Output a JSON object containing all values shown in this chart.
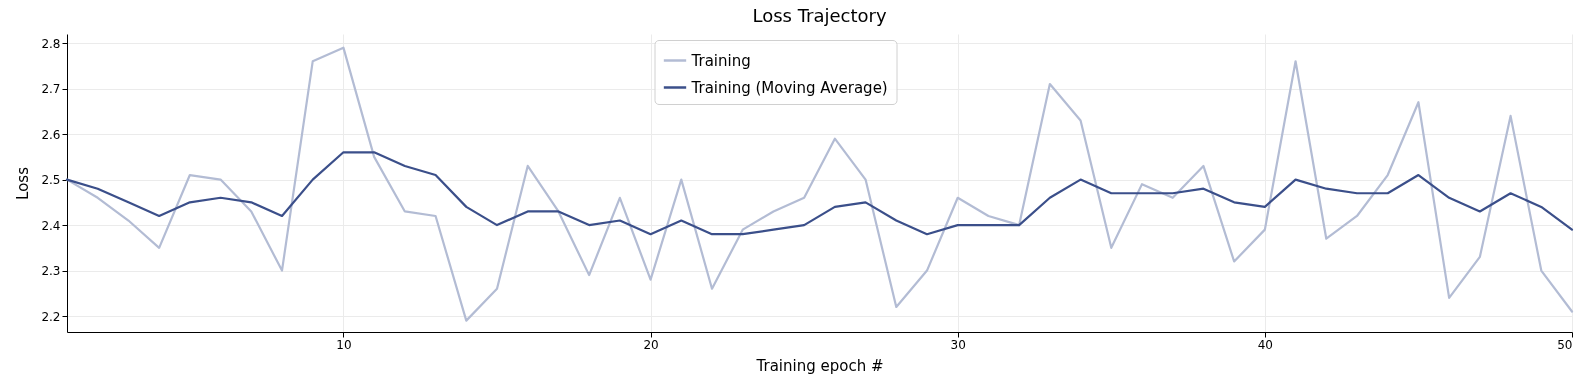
{
  "chart_data": {
    "type": "line",
    "title": "Loss Trajectory",
    "xlabel": "Training epoch #",
    "ylabel": "Loss",
    "x": [
      1,
      2,
      3,
      4,
      5,
      6,
      7,
      8,
      9,
      10,
      11,
      12,
      13,
      14,
      15,
      16,
      17,
      18,
      19,
      20,
      21,
      22,
      23,
      24,
      25,
      26,
      27,
      28,
      29,
      30,
      31,
      32,
      33,
      34,
      35,
      36,
      37,
      38,
      39,
      40,
      41,
      42,
      43,
      44,
      45,
      46,
      47,
      48,
      49,
      50
    ],
    "series": [
      {
        "name": "Training",
        "color": "#b3bcd4",
        "values": [
          2.5,
          2.46,
          2.41,
          2.35,
          2.51,
          2.5,
          2.43,
          2.3,
          2.76,
          2.79,
          2.55,
          2.43,
          2.42,
          2.19,
          2.26,
          2.53,
          2.43,
          2.29,
          2.46,
          2.28,
          2.5,
          2.26,
          2.39,
          2.43,
          2.46,
          2.59,
          2.5,
          2.22,
          2.3,
          2.46,
          2.42,
          2.4,
          2.71,
          2.63,
          2.35,
          2.49,
          2.46,
          2.53,
          2.32,
          2.39,
          2.76,
          2.37,
          2.42,
          2.51,
          2.67,
          2.24,
          2.33,
          2.64,
          2.3,
          2.21
        ]
      },
      {
        "name": "Training (Moving Average)",
        "color": "#3b4f8a",
        "values": [
          2.5,
          2.48,
          2.45,
          2.42,
          2.45,
          2.46,
          2.45,
          2.42,
          2.5,
          2.56,
          2.56,
          2.53,
          2.51,
          2.44,
          2.4,
          2.43,
          2.43,
          2.4,
          2.41,
          2.38,
          2.41,
          2.38,
          2.38,
          2.39,
          2.4,
          2.44,
          2.45,
          2.41,
          2.38,
          2.4,
          2.4,
          2.4,
          2.46,
          2.5,
          2.47,
          2.47,
          2.47,
          2.48,
          2.45,
          2.44,
          2.5,
          2.48,
          2.47,
          2.47,
          2.51,
          2.46,
          2.43,
          2.47,
          2.44,
          2.39
        ]
      }
    ],
    "xlim": [
      1,
      50
    ],
    "xticks": [
      10,
      20,
      30,
      40,
      50
    ],
    "ylim": [
      2.165,
      2.82
    ],
    "yticks": [
      2.2,
      2.3,
      2.4,
      2.5,
      2.6,
      2.7,
      2.8
    ],
    "grid": true,
    "legend": "top"
  }
}
